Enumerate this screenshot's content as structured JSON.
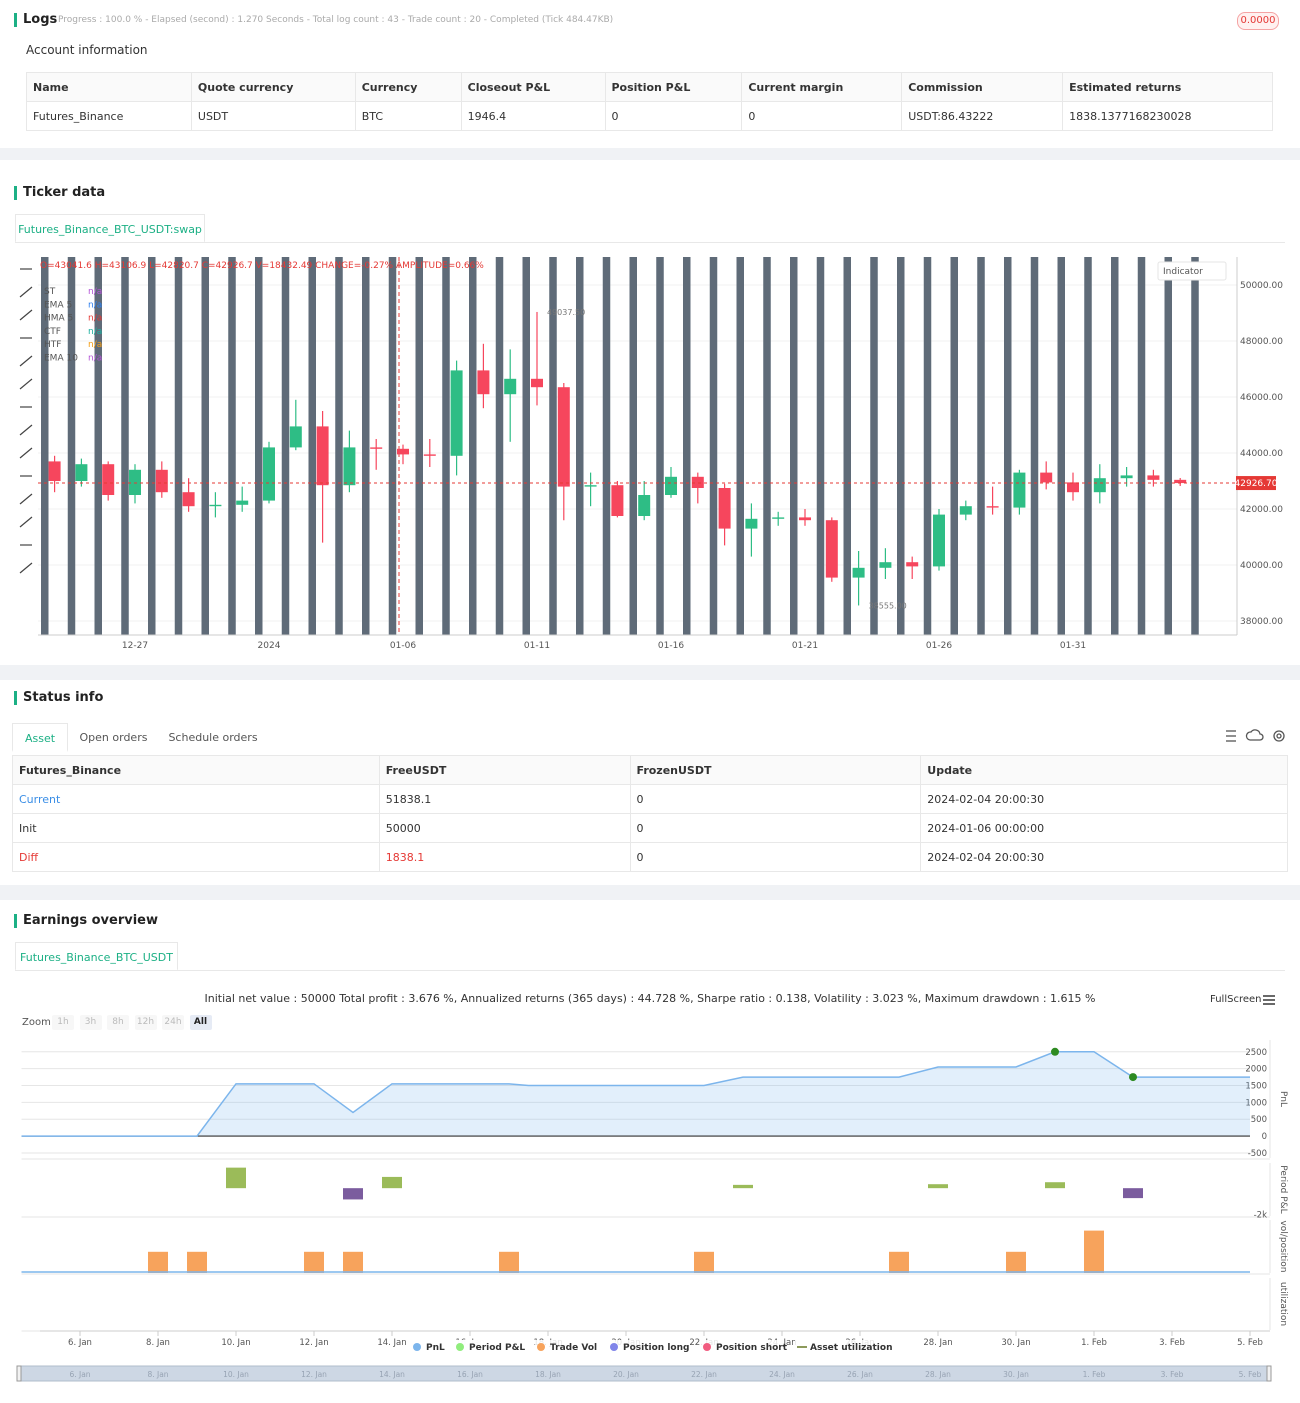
{
  "logs": {
    "title": "Logs",
    "progress": "Progress : 100.0 % - Elapsed (second) : 1.270 Seconds - Total log count : 43 - Trade count : 20 - Completed (Tick 484.47KB)",
    "badge": "0.0000"
  },
  "account": {
    "title": "Account information",
    "columns": [
      "Name",
      "Quote currency",
      "Currency",
      "Closeout P&L",
      "Position P&L",
      "Current margin",
      "Commission",
      "Estimated returns"
    ],
    "rows": [
      [
        "Futures_Binance",
        "USDT",
        "BTC",
        "1946.4",
        "0",
        "0",
        "USDT:86.43222",
        "1838.1377168230028"
      ]
    ]
  },
  "ticker": {
    "title": "Ticker data",
    "tab": "Futures_Binance_BTC_USDT:swap",
    "indicator_button": "Indicator",
    "chart_data": {
      "type": "candlestick",
      "info": "O=43041.6 H=43106.9 L=42820.7 C=42926.7 V=18432.49 CHANGE=-0.27% AMPLITUDE=0.66%",
      "legend": [
        {
          "name": "ST",
          "value": "n/a",
          "color": "#b455d6"
        },
        {
          "name": "EMA 5",
          "value": "n/a",
          "color": "#2f80ed"
        },
        {
          "name": "HMA 5",
          "value": "n/a",
          "color": "#e53935"
        },
        {
          "name": "CTF",
          "value": "n/a",
          "color": "#1cb0a0"
        },
        {
          "name": "HTF",
          "value": "n/a",
          "color": "#f39c12"
        },
        {
          "name": "EMA 10",
          "value": "n/a",
          "color": "#b455d6"
        }
      ],
      "categories": [
        null,
        null,
        null,
        "12-27",
        null,
        null,
        null,
        null,
        "2024",
        null,
        null,
        null,
        null,
        "01-06",
        null,
        null,
        null,
        null,
        "01-11",
        null,
        null,
        null,
        null,
        "01-16",
        null,
        null,
        null,
        null,
        "01-21",
        null,
        null,
        null,
        null,
        "01-26",
        null,
        null,
        null,
        null,
        "01-31",
        null,
        null,
        null,
        null
      ],
      "open": [
        43700,
        43000,
        43600,
        42500,
        43400,
        42600,
        42100,
        42150,
        42300,
        44200,
        44950,
        42850,
        44200,
        44150,
        43950,
        43900,
        46950,
        46100,
        46650,
        46350,
        42800,
        42850,
        41750,
        42500,
        43150,
        42750,
        41300,
        41650,
        41700,
        41600,
        39550,
        39900,
        40100,
        39950,
        41800,
        42100,
        42050,
        43300,
        42950,
        42600,
        43100,
        43200,
        43041.6
      ],
      "high": [
        43900,
        43800,
        43700,
        43600,
        43700,
        43100,
        42600,
        42800,
        44400,
        45900,
        45500,
        44800,
        44500,
        44300,
        44500,
        47300,
        47900,
        47700,
        49037.5,
        46500,
        43300,
        43000,
        43000,
        43500,
        43300,
        42900,
        42200,
        41900,
        42000,
        41700,
        40500,
        40600,
        40300,
        42000,
        42300,
        42800,
        43400,
        43700,
        43300,
        43600,
        43500,
        43400,
        43106.9
      ],
      "low": [
        42600,
        42800,
        42300,
        42200,
        42400,
        41900,
        41700,
        41900,
        42200,
        44100,
        40800,
        42600,
        43400,
        43600,
        43500,
        43200,
        45600,
        44400,
        45700,
        41600,
        42100,
        41700,
        41600,
        42400,
        42200,
        40700,
        40300,
        41400,
        41400,
        39400,
        38555,
        39500,
        39500,
        39800,
        41600,
        41800,
        41800,
        42700,
        42300,
        42200,
        42800,
        42800,
        42820.7
      ],
      "close": [
        43000,
        43600,
        42500,
        43400,
        42600,
        42100,
        42150,
        42300,
        44200,
        44950,
        42850,
        44200,
        44150,
        43950,
        43900,
        46950,
        46100,
        46650,
        46350,
        42800,
        42850,
        41750,
        42500,
        43150,
        42750,
        41300,
        41650,
        41700,
        41600,
        39550,
        39900,
        40100,
        39950,
        41800,
        42100,
        42050,
        43300,
        42950,
        42600,
        43100,
        43200,
        43041.6,
        42926.7
      ],
      "high_label": "49037.50",
      "low_label": "38555.00",
      "last_label": "42926.70",
      "up_color": "#2ebd85",
      "down_color": "#f6465d",
      "ylim": [
        37500,
        51000
      ],
      "yticks": [
        {
          "value": 38000,
          "label": "38000.00"
        },
        {
          "value": 40000,
          "label": "40000.00"
        },
        {
          "value": 42000,
          "label": "42000.00"
        },
        {
          "value": 44000,
          "label": "44000.00"
        },
        {
          "value": 46000,
          "label": "46000.00"
        },
        {
          "value": 48000,
          "label": "48000.00"
        },
        {
          "value": 50000,
          "label": "50000.00"
        }
      ],
      "grid": true
    }
  },
  "status": {
    "title": "Status info",
    "tabs": [
      "Asset",
      "Open orders",
      "Schedule orders"
    ],
    "columns": [
      "Futures_Binance",
      "FreeUSDT",
      "FrozenUSDT",
      "Update"
    ],
    "rows": [
      [
        "Current",
        "51838.1",
        "0",
        "2024-02-04 20:00:30"
      ],
      [
        "Init",
        "50000",
        "0",
        "2024-01-06 00:00:00"
      ],
      [
        "Diff",
        "1838.1",
        "0",
        "2024-02-04 20:00:30"
      ]
    ]
  },
  "earnings": {
    "title": "Earnings overview",
    "tab": "Futures_Binance_BTC_USDT",
    "summary": "Initial net value : 50000 Total profit : 3.676 %, Annualized returns (365 days) : 44.728 %, Sharpe ratio : 0.138, Volatility : 3.023 %, Maximum drawdown : 1.615 %",
    "zoom_label": "Zoom",
    "zoom_buttons": [
      "1h",
      "3h",
      "8h",
      "12h",
      "24h",
      "All"
    ],
    "fullscreen": "FullScreen",
    "legend": [
      {
        "name": "PnL",
        "color": "#7cb5ec"
      },
      {
        "name": "Period P&L",
        "color": "#90ed7d"
      },
      {
        "name": "Trade Vol",
        "color": "#f7a35c"
      },
      {
        "name": "Position long",
        "color": "#8085e9"
      },
      {
        "name": "Position short",
        "color": "#f15c80"
      },
      {
        "name": "Asset utilization",
        "color": "#8d9a5b"
      }
    ],
    "xlim": [
      4.5,
      36
    ],
    "xticks": [
      {
        "value": 6,
        "label": "6. Jan"
      },
      {
        "value": 8,
        "label": "8. Jan"
      },
      {
        "value": 10,
        "label": "10. Jan"
      },
      {
        "value": 12,
        "label": "12. Jan"
      },
      {
        "value": 14,
        "label": "14. Jan"
      },
      {
        "value": 16,
        "label": "16. Jan"
      },
      {
        "value": 18,
        "label": "18. Jan"
      },
      {
        "value": 20,
        "label": "20. Jan"
      },
      {
        "value": 22,
        "label": "22. Jan"
      },
      {
        "value": 24,
        "label": "24. Jan"
      },
      {
        "value": 26,
        "label": "26. Jan"
      },
      {
        "value": 28,
        "label": "28. Jan"
      },
      {
        "value": 30,
        "label": "30. Jan"
      },
      {
        "value": 32,
        "label": "1. Feb"
      },
      {
        "value": 34,
        "label": "3. Feb"
      },
      {
        "value": 36,
        "label": "5. Feb"
      }
    ],
    "chart_data": [
      {
        "type": "area",
        "axis_title": "PnL",
        "x": [
          4.5,
          9,
          10,
          12,
          13,
          14,
          17,
          17.5,
          22,
          23,
          27,
          28,
          30,
          31,
          32,
          33,
          36
        ],
        "values": [
          0,
          0,
          1550,
          1550,
          700,
          1550,
          1550,
          1500,
          1500,
          1750,
          1750,
          2050,
          2050,
          2500,
          2500,
          1750,
          1750
        ],
        "color": "#7cb5ec",
        "ylim": [
          -650,
          2850
        ],
        "yticks": [
          -500,
          0,
          500,
          1000,
          1500,
          2000,
          2500
        ],
        "grid": true
      },
      {
        "type": "bar",
        "axis_title": "Period P&L",
        "x": [
          10,
          13,
          14,
          23,
          28,
          31,
          33
        ],
        "values": [
          1550,
          -850,
          850,
          250,
          300,
          450,
          -750
        ],
        "positive_color": "#9bbb59",
        "negative_color": "#7b5c9e",
        "ylim": [
          -2100,
          1900
        ],
        "yticks": [
          {
            "value": -2000,
            "label": "-2k"
          }
        ]
      },
      {
        "type": "bar",
        "axis_title": "vol/position",
        "x": [
          8,
          9,
          12,
          13,
          17,
          22,
          27,
          30,
          32
        ],
        "values": [
          1,
          1,
          1,
          1,
          1,
          1,
          1,
          1,
          2
        ],
        "positive_color": "#f7a35c",
        "ylim": [
          0,
          2.5
        ]
      },
      {
        "type": "line",
        "axis_title": "utilization"
      }
    ]
  }
}
